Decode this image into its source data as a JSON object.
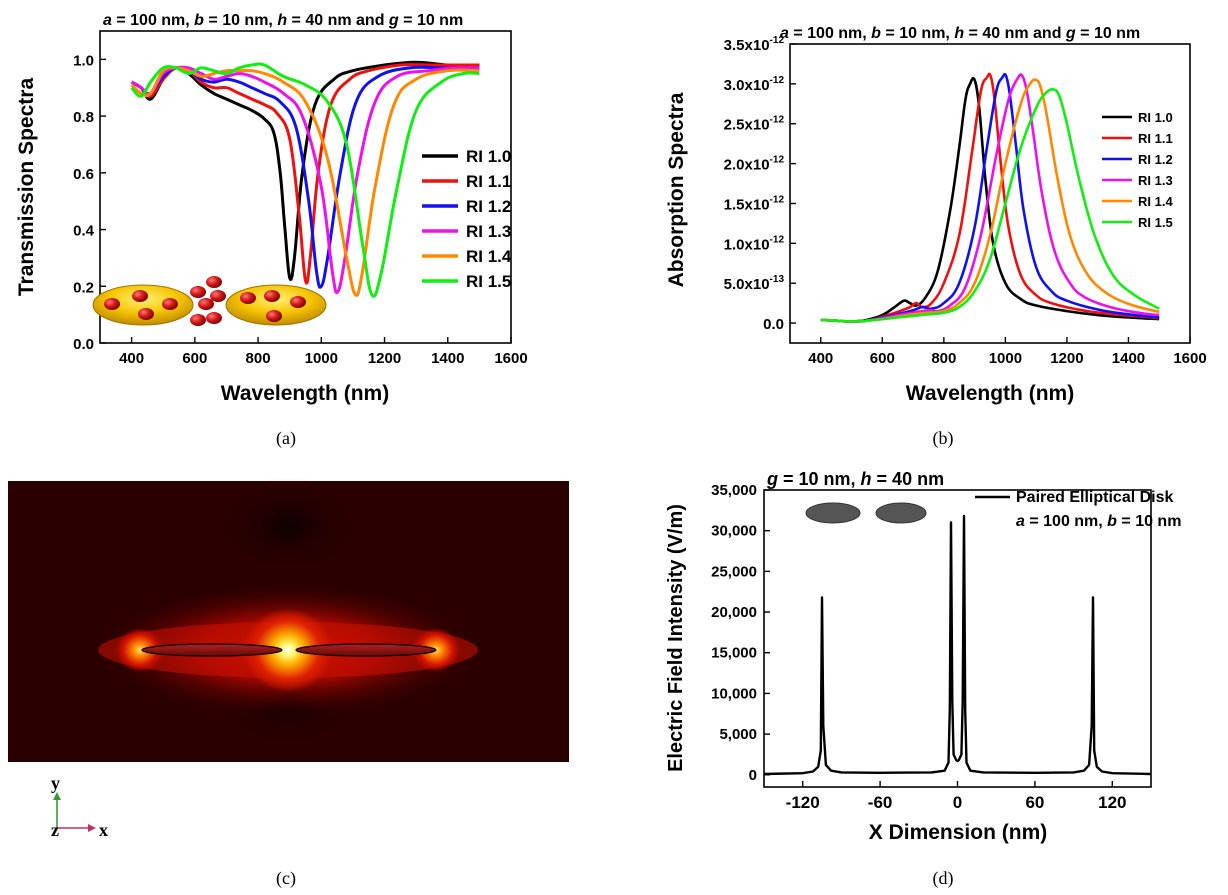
{
  "panel_labels": [
    "(a)",
    "(b)",
    "(c)",
    "(d)"
  ],
  "colors": {
    "RI 1.0": "#000000",
    "RI 1.1": "#ee1111",
    "RI 1.2": "#1111ee",
    "RI 1.3": "#ee11ee",
    "RI 1.4": "#ff8800",
    "RI 1.5": "#11ee11"
  },
  "chart_data": [
    {
      "id": "a",
      "type": "line",
      "header": {
        "parts": [
          {
            "t": "a",
            "i": true
          },
          {
            "t": " = 100 nm,   "
          },
          {
            "t": "b",
            "i": true
          },
          {
            "t": " = 10 nm, "
          },
          {
            "t": "h",
            "i": true
          },
          {
            "t": " = 40 nm and "
          },
          {
            "t": "g",
            "i": true
          },
          {
            "t": " = 10 nm"
          }
        ]
      },
      "xlabel": "Wavelength (nm)",
      "ylabel": "Transmission Spectra",
      "xlim": [
        300,
        1600
      ],
      "ylim": [
        0.0,
        1.1
      ],
      "xticks": [
        "400",
        "600",
        "800",
        "1000",
        "1200",
        "1400",
        "1600"
      ],
      "yticks": [
        "0.0",
        "0.2",
        "0.4",
        "0.6",
        "0.8",
        "1.0"
      ],
      "legend": "right-middle",
      "series": [
        {
          "name": "RI 1.0",
          "x": [
            400,
            430,
            460,
            500,
            540,
            580,
            620,
            660,
            700,
            740,
            780,
            820,
            850,
            870,
            885,
            900,
            915,
            940,
            980,
            1040,
            1100,
            1200,
            1300,
            1400,
            1500
          ],
          "y": [
            0.92,
            0.9,
            0.86,
            0.93,
            0.97,
            0.95,
            0.91,
            0.88,
            0.86,
            0.84,
            0.82,
            0.79,
            0.74,
            0.6,
            0.4,
            0.23,
            0.3,
            0.6,
            0.84,
            0.93,
            0.96,
            0.98,
            0.99,
            0.98,
            0.98
          ]
        },
        {
          "name": "RI 1.1",
          "x": [
            400,
            430,
            460,
            500,
            540,
            580,
            620,
            660,
            700,
            740,
            780,
            820,
            860,
            900,
            930,
            950,
            965,
            990,
            1030,
            1090,
            1150,
            1250,
            1350,
            1450,
            1500
          ],
          "y": [
            0.92,
            0.9,
            0.87,
            0.93,
            0.97,
            0.96,
            0.92,
            0.9,
            0.9,
            0.88,
            0.86,
            0.84,
            0.81,
            0.72,
            0.45,
            0.22,
            0.3,
            0.6,
            0.84,
            0.93,
            0.96,
            0.98,
            0.98,
            0.98,
            0.98
          ]
        },
        {
          "name": "RI 1.2",
          "x": [
            400,
            430,
            460,
            500,
            540,
            580,
            620,
            660,
            700,
            740,
            780,
            820,
            870,
            920,
            960,
            985,
            1000,
            1020,
            1060,
            1110,
            1180,
            1280,
            1380,
            1450,
            1500
          ],
          "y": [
            0.92,
            0.9,
            0.88,
            0.94,
            0.97,
            0.96,
            0.93,
            0.92,
            0.93,
            0.92,
            0.9,
            0.88,
            0.85,
            0.76,
            0.5,
            0.25,
            0.2,
            0.3,
            0.6,
            0.85,
            0.94,
            0.97,
            0.97,
            0.97,
            0.97
          ]
        },
        {
          "name": "RI 1.3",
          "x": [
            400,
            430,
            460,
            500,
            540,
            580,
            620,
            660,
            700,
            740,
            780,
            820,
            880,
            940,
            1000,
            1035,
            1052,
            1075,
            1115,
            1170,
            1240,
            1340,
            1420,
            1500
          ],
          "y": [
            0.92,
            0.9,
            0.88,
            0.95,
            0.97,
            0.97,
            0.95,
            0.93,
            0.94,
            0.95,
            0.94,
            0.92,
            0.88,
            0.8,
            0.55,
            0.25,
            0.18,
            0.3,
            0.6,
            0.85,
            0.94,
            0.96,
            0.97,
            0.97
          ]
        },
        {
          "name": "RI 1.4",
          "x": [
            400,
            430,
            460,
            500,
            540,
            580,
            620,
            660,
            700,
            740,
            780,
            820,
            880,
            950,
            1020,
            1080,
            1108,
            1130,
            1170,
            1230,
            1300,
            1400,
            1500
          ],
          "y": [
            0.91,
            0.88,
            0.88,
            0.96,
            0.97,
            0.96,
            0.94,
            0.95,
            0.96,
            0.96,
            0.96,
            0.95,
            0.92,
            0.85,
            0.65,
            0.3,
            0.17,
            0.25,
            0.55,
            0.84,
            0.93,
            0.96,
            0.96
          ]
        },
        {
          "name": "RI 1.5",
          "x": [
            400,
            430,
            460,
            500,
            540,
            580,
            620,
            660,
            700,
            740,
            780,
            820,
            880,
            950,
            1020,
            1080,
            1130,
            1160,
            1190,
            1240,
            1300,
            1380,
            1450,
            1500
          ],
          "y": [
            0.9,
            0.87,
            0.92,
            0.97,
            0.97,
            0.95,
            0.97,
            0.96,
            0.95,
            0.97,
            0.98,
            0.98,
            0.94,
            0.91,
            0.85,
            0.7,
            0.35,
            0.17,
            0.25,
            0.55,
            0.82,
            0.92,
            0.95,
            0.95
          ]
        }
      ]
    },
    {
      "id": "b",
      "type": "line",
      "header": {
        "parts": [
          {
            "t": "a",
            "i": true
          },
          {
            "t": " = 100 nm,   "
          },
          {
            "t": "b",
            "i": true
          },
          {
            "t": " = 10 nm, "
          },
          {
            "t": "h",
            "i": true
          },
          {
            "t": " = 40 nm and "
          },
          {
            "t": "g",
            "i": true
          },
          {
            "t": " = 10 nm"
          }
        ]
      },
      "xlabel": "Wavelength (nm)",
      "ylabel": "Absorption Spectra",
      "xlim": [
        300,
        1600
      ],
      "ylim": [
        -2.5e-13,
        3.5e-12
      ],
      "xticks": [
        "400",
        "600",
        "800",
        "1000",
        "1200",
        "1400",
        "1600"
      ],
      "yticks": [
        {
          "m": "0.0",
          "e": ""
        },
        {
          "m": "5.0x10",
          "e": "-13"
        },
        {
          "m": "1.0x10",
          "e": "-12"
        },
        {
          "m": "1.5x10",
          "e": "-12"
        },
        {
          "m": "2.0x10",
          "e": "-12"
        },
        {
          "m": "2.5x10",
          "e": "-12"
        },
        {
          "m": "3.0x10",
          "e": "-12"
        },
        {
          "m": "3.5x10",
          "e": "-12"
        }
      ],
      "legend": "top-right",
      "series": [
        {
          "name": "RI 1.0",
          "x": [
            400,
            450,
            500,
            550,
            600,
            640,
            670,
            690,
            710,
            740,
            780,
            820,
            850,
            870,
            885,
            900,
            915,
            935,
            960,
            1000,
            1050,
            1100,
            1200,
            1300,
            1400,
            1500
          ],
          "y": [
            4e-14,
            3e-14,
            2e-14,
            4e-14,
            1e-13,
            2e-13,
            2.8e-13,
            2.5e-13,
            2.2e-13,
            3.2e-13,
            6.5e-13,
            1.4e-12,
            2.2e-12,
            2.8e-12,
            3e-12,
            3.05e-12,
            2.7e-12,
            1.8e-12,
            1e-12,
            5e-13,
            3e-13,
            2.2e-13,
            1.5e-13,
            1e-13,
            7e-14,
            5e-14
          ]
        },
        {
          "name": "RI 1.1",
          "x": [
            400,
            450,
            500,
            550,
            600,
            650,
            690,
            710,
            730,
            760,
            800,
            850,
            890,
            920,
            940,
            952,
            965,
            985,
            1010,
            1050,
            1100,
            1150,
            1250,
            1350,
            1450,
            1500
          ],
          "y": [
            4e-14,
            3e-14,
            2e-14,
            3e-14,
            8e-14,
            1.4e-13,
            2e-13,
            2.5e-13,
            2e-13,
            2.5e-13,
            5e-13,
            1.1e-12,
            2.1e-12,
            2.9e-12,
            3.08e-12,
            3.1e-12,
            2.8e-12,
            2e-12,
            1.2e-12,
            6e-13,
            3.5e-13,
            2.5e-13,
            1.6e-13,
            1.1e-13,
            8e-14,
            6e-14
          ]
        },
        {
          "name": "RI 1.2",
          "x": [
            400,
            450,
            500,
            550,
            600,
            650,
            700,
            730,
            760,
            800,
            850,
            900,
            940,
            970,
            990,
            1002,
            1015,
            1035,
            1060,
            1100,
            1150,
            1200,
            1300,
            1400,
            1500
          ],
          "y": [
            4e-14,
            3e-14,
            2e-14,
            3e-14,
            7e-14,
            1.1e-13,
            1.6e-13,
            2e-13,
            1.8e-13,
            2.5e-13,
            5e-13,
            1.2e-12,
            2.2e-12,
            2.9e-12,
            3.08e-12,
            3.1e-12,
            2.85e-12,
            2.2e-12,
            1.4e-12,
            7e-13,
            4e-13,
            2.8e-13,
            1.7e-13,
            1.1e-13,
            7e-14
          ]
        },
        {
          "name": "RI 1.3",
          "x": [
            400,
            450,
            500,
            550,
            600,
            650,
            700,
            750,
            780,
            820,
            870,
            920,
            970,
            1010,
            1040,
            1055,
            1070,
            1090,
            1120,
            1160,
            1210,
            1260,
            1350,
            1450,
            1500
          ],
          "y": [
            4e-14,
            3e-14,
            2e-14,
            3e-14,
            6e-14,
            1e-13,
            1.3e-13,
            1.6e-13,
            1.5e-13,
            2.2e-13,
            4.5e-13,
            1.1e-12,
            2.1e-12,
            2.8e-12,
            3.07e-12,
            3.1e-12,
            2.9e-12,
            2.4e-12,
            1.6e-12,
            9e-13,
            5e-13,
            3.2e-13,
            1.9e-13,
            1.2e-13,
            1e-13
          ]
        },
        {
          "name": "RI 1.4",
          "x": [
            400,
            450,
            500,
            550,
            600,
            650,
            700,
            750,
            800,
            850,
            900,
            950,
            1000,
            1050,
            1080,
            1100,
            1115,
            1135,
            1170,
            1210,
            1260,
            1320,
            1400,
            1500
          ],
          "y": [
            4e-14,
            3e-14,
            2e-14,
            3e-14,
            5e-14,
            8e-14,
            1.1e-13,
            1.3e-13,
            1.5e-13,
            2.5e-13,
            5e-13,
            1.1e-12,
            2e-12,
            2.75e-12,
            3e-12,
            3.05e-12,
            2.95e-12,
            2.6e-12,
            1.8e-12,
            1.1e-12,
            6.5e-13,
            4e-13,
            2.4e-13,
            1.4e-13
          ]
        },
        {
          "name": "RI 1.5",
          "x": [
            400,
            450,
            500,
            550,
            600,
            650,
            700,
            750,
            800,
            850,
            900,
            950,
            1000,
            1050,
            1100,
            1130,
            1155,
            1175,
            1200,
            1240,
            1290,
            1350,
            1420,
            1500
          ],
          "y": [
            4e-14,
            3e-14,
            2e-14,
            3e-14,
            5e-14,
            7e-14,
            9e-14,
            1.1e-13,
            1.3e-13,
            2e-13,
            4e-13,
            8e-13,
            1.5e-12,
            2.2e-12,
            2.7e-12,
            2.88e-12,
            2.93e-12,
            2.85e-12,
            2.5e-12,
            1.8e-12,
            1.1e-12,
            6e-13,
            3.5e-13,
            1.8e-13
          ]
        }
      ]
    },
    {
      "id": "d",
      "type": "line",
      "header": {
        "parts": [
          {
            "t": "g",
            "i": true
          },
          {
            "t": " = 10 nm, "
          },
          {
            "t": "h",
            "i": true
          },
          {
            "t": " = 40 nm"
          }
        ]
      },
      "xlabel": "X Dimension (nm)",
      "ylabel": "Electric Field Intensity (V/m)",
      "xlim": [
        -150,
        150
      ],
      "ylim": [
        -1500,
        35000
      ],
      "xticks": [
        "-120",
        "-60",
        "0",
        "60",
        "120"
      ],
      "yticks": [
        "0",
        "5,000",
        "10,000",
        "15,000",
        "20,000",
        "25,000",
        "30,000",
        "35,000"
      ],
      "legend": "top-right",
      "legend_entry": "Paired Elliptical Disk",
      "annotation": {
        "parts": [
          {
            "t": "a",
            "i": true
          },
          {
            "t": " = 100 nm, "
          },
          {
            "t": "b",
            "i": true
          },
          {
            "t": " = 10 nm"
          }
        ]
      },
      "series": [
        {
          "name": "Paired Elliptical Disk",
          "x": [
            -150,
            -120,
            -112,
            -108,
            -106,
            -105,
            -104,
            -102,
            -98,
            -90,
            -60,
            -20,
            -10,
            -7,
            -6,
            -5,
            -4,
            -3,
            -1,
            0,
            1,
            3,
            4,
            5,
            6,
            7,
            10,
            20,
            60,
            90,
            98,
            102,
            104,
            105,
            106,
            108,
            112,
            120,
            150
          ],
          "y": [
            100,
            200,
            400,
            1000,
            3000,
            21800,
            6000,
            1200,
            500,
            300,
            250,
            300,
            500,
            1500,
            8000,
            31000,
            9000,
            2500,
            1800,
            1700,
            1800,
            2500,
            9000,
            31800,
            8000,
            1500,
            500,
            300,
            250,
            300,
            500,
            1200,
            6000,
            21800,
            3000,
            1000,
            400,
            200,
            100
          ]
        }
      ]
    }
  ],
  "panel_c": {
    "axes_labels": {
      "y": "y",
      "z": "z",
      "x": "x"
    }
  }
}
